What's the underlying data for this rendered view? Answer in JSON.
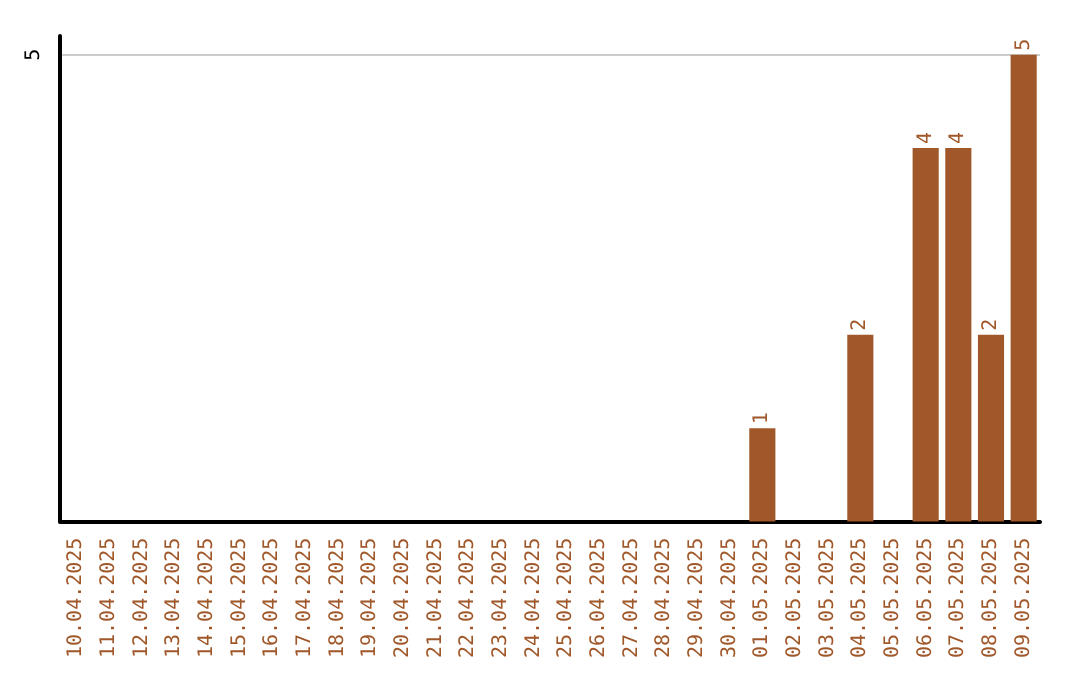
{
  "chart_data": {
    "type": "bar",
    "categories": [
      "10.04.2025",
      "11.04.2025",
      "12.04.2025",
      "13.04.2025",
      "14.04.2025",
      "15.04.2025",
      "16.04.2025",
      "17.04.2025",
      "18.04.2025",
      "19.04.2025",
      "20.04.2025",
      "21.04.2025",
      "22.04.2025",
      "23.04.2025",
      "24.04.2025",
      "25.04.2025",
      "26.04.2025",
      "27.04.2025",
      "28.04.2025",
      "29.04.2025",
      "30.04.2025",
      "01.05.2025",
      "02.05.2025",
      "03.05.2025",
      "04.05.2025",
      "05.05.2025",
      "06.05.2025",
      "07.05.2025",
      "08.05.2025",
      "09.05.2025"
    ],
    "values": [
      null,
      null,
      null,
      null,
      null,
      null,
      null,
      null,
      null,
      null,
      null,
      null,
      null,
      null,
      null,
      null,
      null,
      null,
      null,
      null,
      null,
      1,
      null,
      null,
      2,
      null,
      4,
      4,
      2,
      5
    ],
    "color": "#a0582a",
    "ylim": [
      0,
      5.2
    ],
    "yticks": [
      5
    ],
    "grid": "y",
    "data_labels": true
  }
}
